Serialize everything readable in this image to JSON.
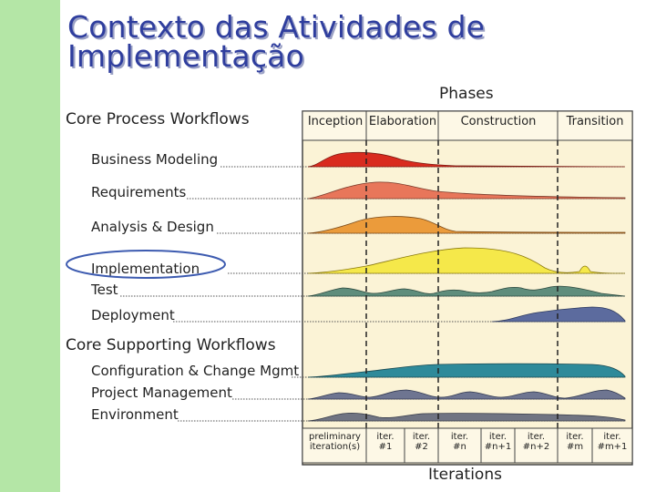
{
  "slide": {
    "title_line1": "Contexto das Atividades de",
    "title_line2": "Implementação"
  },
  "diagram": {
    "phases_title": "Phases",
    "iterations_title": "Iterations",
    "core_process_heading": "Core Process Workflows",
    "core_supporting_heading": "Core Supporting Workflows",
    "phases": [
      "Inception",
      "Elaboration",
      "Construction",
      "Transition"
    ],
    "process_workflows": [
      "Business Modeling",
      "Requirements",
      "Analysis & Design",
      "Implementation",
      "Test",
      "Deployment"
    ],
    "supporting_workflows": [
      "Configuration & Change Mgmt",
      "Project Management",
      "Environment"
    ],
    "iterations": [
      {
        "line1": "preliminary",
        "line2": "iteration(s)"
      },
      {
        "line1": "iter.",
        "line2": "#1"
      },
      {
        "line1": "iter.",
        "line2": "#2"
      },
      {
        "line1": "iter.",
        "line2": "#n"
      },
      {
        "line1": "iter.",
        "line2": "#n+1"
      },
      {
        "line1": "iter.",
        "line2": "#n+2"
      },
      {
        "line1": "iter.",
        "line2": "#m"
      },
      {
        "line1": "iter.",
        "line2": "#m+1"
      }
    ],
    "highlighted_workflow": "Implementation",
    "colors": {
      "sidebar": "#b4e6a6",
      "title": "#2f3e9e",
      "chart_bg": "#fbf3d6",
      "business_modeling": "#d92b1f",
      "requirements": "#e8765a",
      "analysis_design": "#eb9b3b",
      "implementation": "#f5e84a",
      "test": "#5f8d7c",
      "deployment": "#5c6b9e",
      "config_change": "#2e8a9a",
      "project_mgmt": "#6e7591",
      "environment": "#707482",
      "highlight_ellipse": "#3d5bb0"
    }
  }
}
